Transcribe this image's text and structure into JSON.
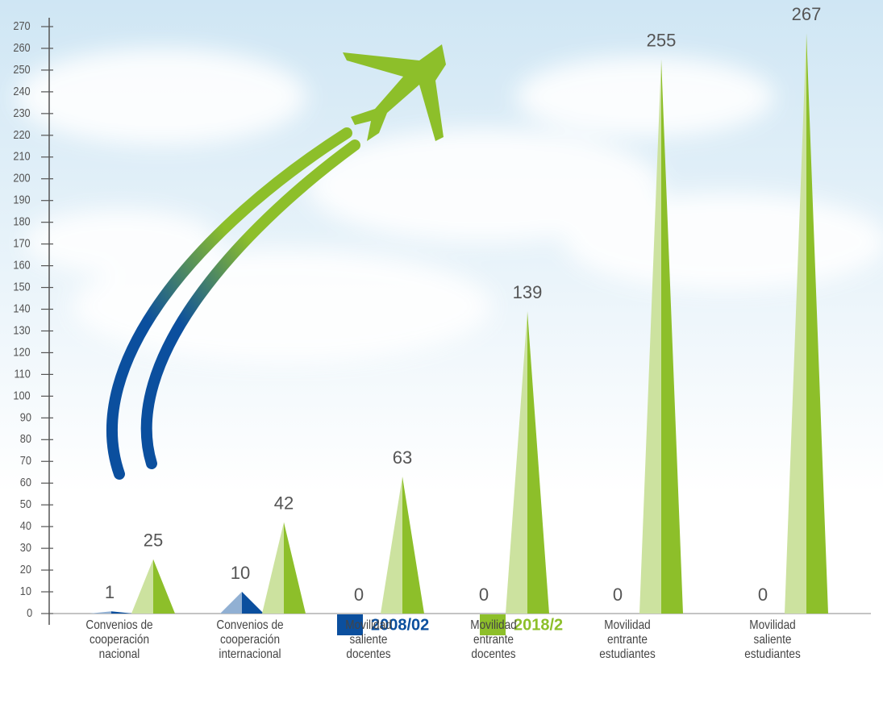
{
  "chart_data": {
    "type": "bar",
    "categories": [
      "Convenios de\ncooperación\nnacional",
      "Convenios de\ncooperación\ninternacional",
      "Movilidad\nsaliente\ndocentes",
      "Movilidad\nentrante\ndocentes",
      "Movilidad\nentrante\nestudiantes",
      "Movilidad\nsaliente\nestudiantes"
    ],
    "series": [
      {
        "name": "2008/02",
        "color": "#0b4f9e",
        "values": [
          1,
          10,
          0,
          0,
          0,
          0
        ]
      },
      {
        "name": "2018/2",
        "color": "#8dbf2a",
        "values": [
          25,
          42,
          63,
          139,
          255,
          267
        ]
      }
    ],
    "ylim": [
      0,
      270
    ],
    "yticks": [
      0,
      10,
      20,
      30,
      40,
      50,
      60,
      70,
      80,
      90,
      100,
      110,
      120,
      130,
      140,
      150,
      160,
      170,
      180,
      190,
      200,
      210,
      220,
      230,
      240,
      250,
      260,
      270
    ]
  }
}
